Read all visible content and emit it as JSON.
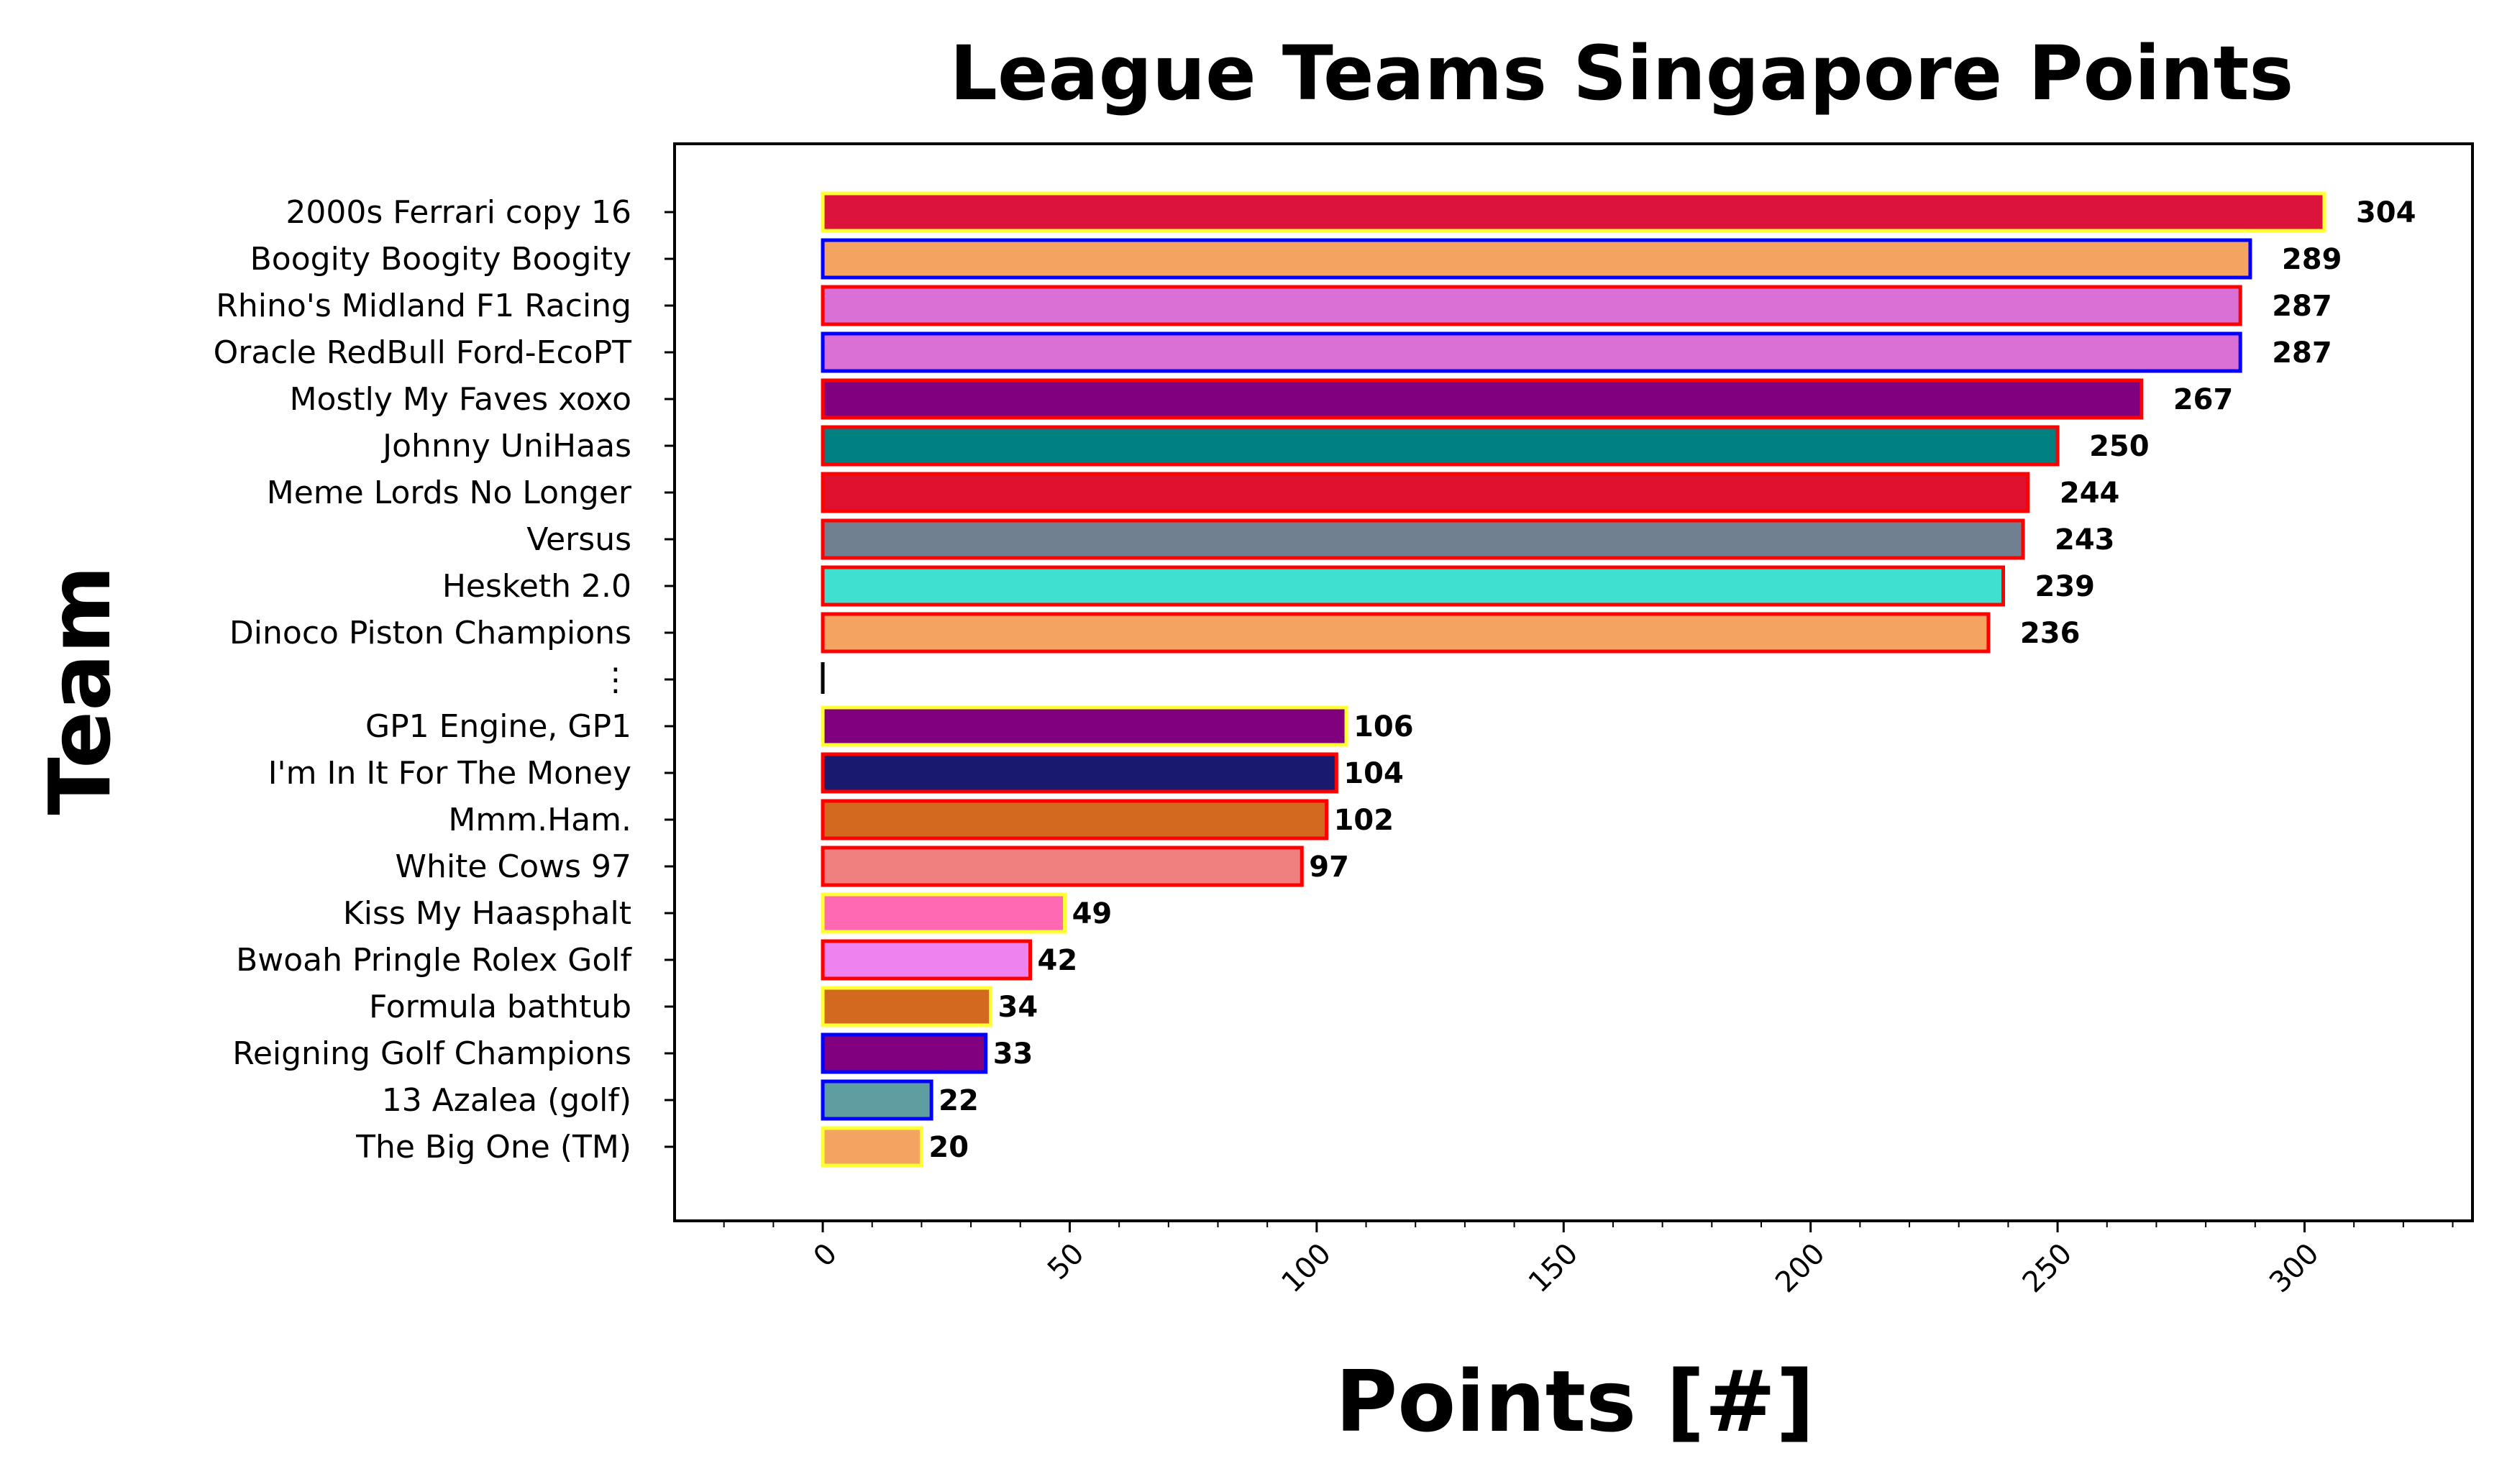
{
  "chart_data": {
    "type": "bar",
    "orientation": "horizontal",
    "title": "League Teams Singapore Points",
    "xlabel": "Points [#]",
    "ylabel": "Team",
    "xlim": [
      -30,
      334
    ],
    "xticks": [
      0,
      50,
      100,
      150,
      200,
      250,
      300
    ],
    "xtick_labels": [
      "0",
      "50",
      "100",
      "150",
      "200",
      "250",
      "300"
    ],
    "grid": false,
    "legend": "none",
    "bars": [
      {
        "team": "2000s Ferrari copy 16",
        "value": 304,
        "label": "304",
        "fill": "#dc143c",
        "edge": "#ffff33"
      },
      {
        "team": "Boogity Boogity Boogity",
        "value": 289,
        "label": "289",
        "fill": "#f4a460",
        "edge": "#0000ff"
      },
      {
        "team": "Rhino's Midland F1 Racing",
        "value": 287,
        "label": "287",
        "fill": "#da70d6",
        "edge": "#ff0000"
      },
      {
        "team": "Oracle RedBull Ford-EcoPT",
        "value": 287,
        "label": "287",
        "fill": "#da70d6",
        "edge": "#0000ff"
      },
      {
        "team": "Mostly My Faves xoxo",
        "value": 267,
        "label": "267",
        "fill": "#800080",
        "edge": "#ff0000"
      },
      {
        "team": "Johnny UniHaas",
        "value": 250,
        "label": "250",
        "fill": "#008080",
        "edge": "#ff0000"
      },
      {
        "team": "Meme Lords No Longer",
        "value": 244,
        "label": "244",
        "fill": "#e0102f",
        "edge": "#ff0000"
      },
      {
        "team": "Versus",
        "value": 243,
        "label": "243",
        "fill": "#708090",
        "edge": "#ff0000"
      },
      {
        "team": "Hesketh 2.0",
        "value": 239,
        "label": "239",
        "fill": "#40e0d0",
        "edge": "#ff0000"
      },
      {
        "team": "Dinoco Piston Champions",
        "value": 236,
        "label": "236",
        "fill": "#f4a460",
        "edge": "#ff0000"
      },
      {
        "team": "⋮",
        "value": 0,
        "label": "",
        "fill": "#000000",
        "edge": "#000000",
        "separator": true
      },
      {
        "team": "GP1 Engine, GP1",
        "value": 106,
        "label": "106",
        "fill": "#800080",
        "edge": "#ffff33"
      },
      {
        "team": "I'm In It For The Money",
        "value": 104,
        "label": "104",
        "fill": "#191970",
        "edge": "#ff0000"
      },
      {
        "team": "Mmm.Ham.",
        "value": 102,
        "label": "102",
        "fill": "#d2691e",
        "edge": "#ff0000"
      },
      {
        "team": "White Cows 97",
        "value": 97,
        "label": "97",
        "fill": "#f08080",
        "edge": "#ff0000"
      },
      {
        "team": "Kiss My Haasphalt",
        "value": 49,
        "label": "49",
        "fill": "#ff69b4",
        "edge": "#ffff33"
      },
      {
        "team": "Bwoah Pringle Rolex Golf",
        "value": 42,
        "label": "42",
        "fill": "#ee82ee",
        "edge": "#ff0000"
      },
      {
        "team": "Formula bathtub",
        "value": 34,
        "label": "34",
        "fill": "#d2691e",
        "edge": "#ffff33"
      },
      {
        "team": "Reigning Golf Champions",
        "value": 33,
        "label": "33",
        "fill": "#800080",
        "edge": "#0000ff"
      },
      {
        "team": "13 Azalea (golf)",
        "value": 22,
        "label": "22",
        "fill": "#5f9ea0",
        "edge": "#0000ff"
      },
      {
        "team": "The Big One (TM)",
        "value": 20,
        "label": "20",
        "fill": "#f4a460",
        "edge": "#ffff33"
      }
    ]
  }
}
